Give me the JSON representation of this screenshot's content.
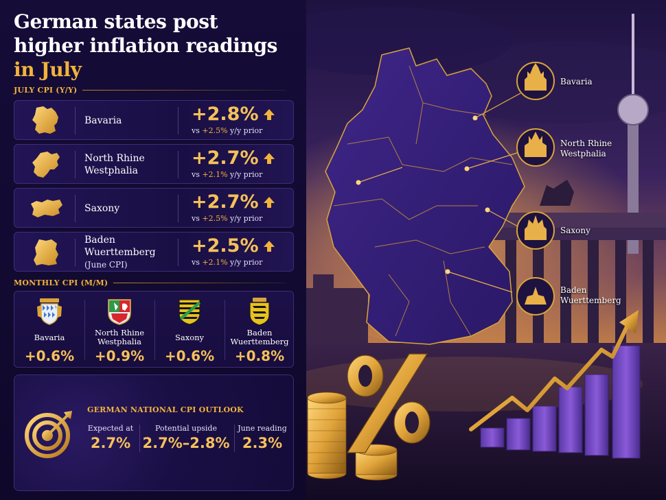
{
  "title": {
    "line1": "German states post",
    "line2": "higher inflation readings",
    "line3": "in July"
  },
  "yoy_section": {
    "heading": "JULY CPI (Y/Y)",
    "rows": [
      {
        "name_line1": "Bavaria",
        "name_line2": "",
        "name_note": "",
        "value": "+2.8%",
        "prior_prefix": "vs",
        "prior_value": "+2.5%",
        "prior_suffix": "y/y prior"
      },
      {
        "name_line1": "North Rhine",
        "name_line2": "Westphalia",
        "name_note": "",
        "value": "+2.7%",
        "prior_prefix": "vs",
        "prior_value": "+2.1%",
        "prior_suffix": "y/y prior"
      },
      {
        "name_line1": "Saxony",
        "name_line2": "",
        "name_note": "",
        "value": "+2.7%",
        "prior_prefix": "vs",
        "prior_value": "+2.5%",
        "prior_suffix": "y/y prior"
      },
      {
        "name_line1": "Baden",
        "name_line2": "Wuerttemberg",
        "name_note": "(June CPI)",
        "value": "+2.5%",
        "prior_prefix": "vs",
        "prior_value": "+2.1%",
        "prior_suffix": "y/y prior"
      }
    ]
  },
  "monthly_section": {
    "heading": "MONTHLY CPI (M/M)",
    "items": [
      {
        "name_line1": "Bavaria",
        "name_line2": "",
        "value": "+0.6%"
      },
      {
        "name_line1": "North Rhine",
        "name_line2": "Westphalia",
        "value": "+0.9%"
      },
      {
        "name_line1": "Saxony",
        "name_line2": "",
        "value": "+0.6%"
      },
      {
        "name_line1": "Baden",
        "name_line2": "Wuerttemberg",
        "value": "+0.8%"
      }
    ]
  },
  "outlook": {
    "heading": "GERMAN NATIONAL CPI OUTLOOK",
    "icon": "target-icon",
    "items": [
      {
        "label": "Expected at",
        "value": "2.7%"
      },
      {
        "label": "Potential upside",
        "value": "2.7%–2.8%"
      },
      {
        "label": "June reading",
        "value": "2.3%"
      }
    ]
  },
  "map_callouts": [
    {
      "name_line1": "Bavaria",
      "name_line2": ""
    },
    {
      "name_line1": "North Rhine",
      "name_line2": "Westphalia"
    },
    {
      "name_line1": "Saxony",
      "name_line2": ""
    },
    {
      "name_line1": "Baden",
      "name_line2": "Wuerttemberg"
    }
  ],
  "colors": {
    "accent_gold": "#f2b33d",
    "value_gold": "#f6c15a",
    "panel_bg": "#150c38",
    "card_border": "#3f2d78",
    "map_purple": "#3a2380"
  }
}
